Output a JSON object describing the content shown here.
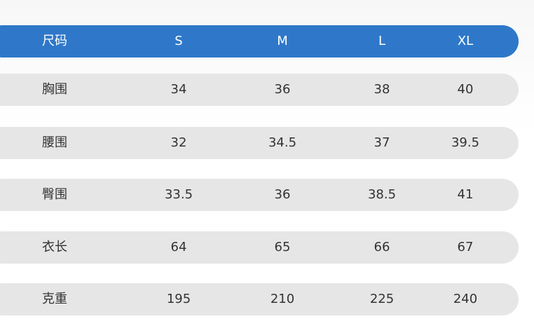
{
  "table": {
    "header": [
      "尺码",
      "S",
      "M",
      "L",
      "XL"
    ],
    "rows": [
      [
        "胸围",
        34,
        36,
        38,
        40
      ],
      [
        "腰围",
        32,
        34.5,
        37,
        39.5
      ],
      [
        "臀围",
        33.5,
        36,
        38.5,
        41
      ],
      [
        "衣长",
        64,
        65,
        66,
        67
      ],
      [
        "克重",
        195,
        210,
        225,
        240
      ]
    ]
  }
}
